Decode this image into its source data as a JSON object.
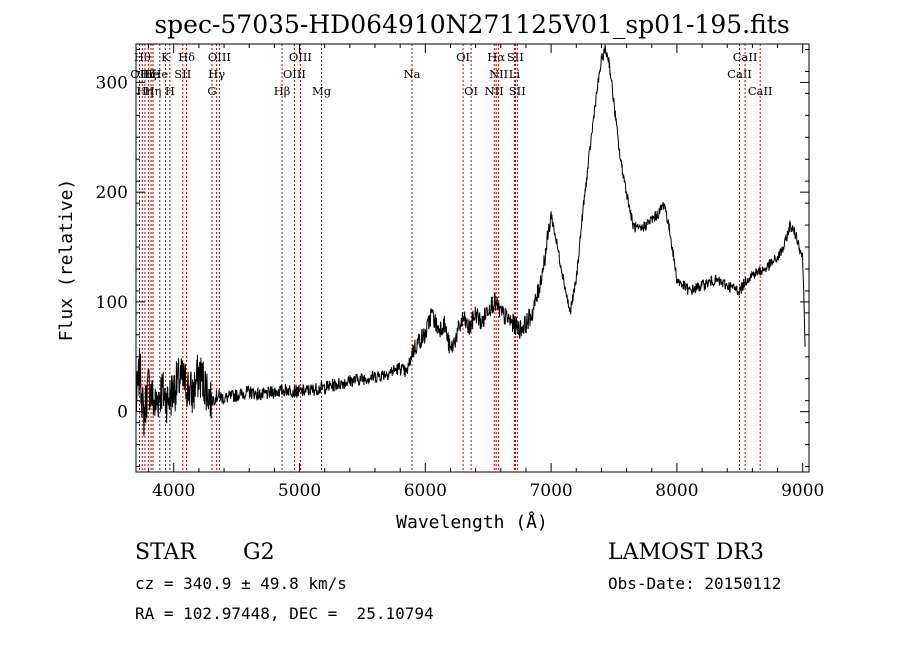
{
  "chart_data": {
    "type": "line",
    "title": "spec-57035-HD064910N271125V01_sp01-195.fits",
    "xlabel": "Wavelength (Å)",
    "ylabel": "Flux (relative)",
    "xlim": [
      3700,
      9050
    ],
    "ylim": [
      -55,
      335
    ],
    "xticks": [
      4000,
      5000,
      6000,
      7000,
      8000,
      9000
    ],
    "yticks": [
      0,
      100,
      200,
      300
    ],
    "grid": false,
    "series": [
      {
        "x": [
          3700,
          3730,
          3760,
          3800,
          3850,
          3900,
          3950,
          4000,
          4050,
          4100,
          4150,
          4200,
          4250,
          4300,
          4350,
          4400,
          4500,
          4600,
          4700,
          4800,
          4900,
          5000,
          5100,
          5200,
          5300,
          5400,
          5500,
          5600,
          5700,
          5800,
          5850,
          5900,
          5950,
          6000,
          6050,
          6100,
          6150,
          6200,
          6250,
          6300,
          6350,
          6400,
          6450,
          6500,
          6550,
          6600,
          6650,
          6700,
          6750,
          6800,
          6850,
          6900,
          6950,
          7000,
          7050,
          7100,
          7150,
          7200,
          7250,
          7300,
          7350,
          7400,
          7430,
          7460,
          7500,
          7550,
          7600,
          7650,
          7700,
          7750,
          7800,
          7850,
          7900,
          7950,
          8000,
          8050,
          8100,
          8200,
          8300,
          8400,
          8500,
          8550,
          8600,
          8700,
          8800,
          8850,
          8900,
          8950,
          9000,
          9020
        ],
        "y": [
          5,
          40,
          -5,
          25,
          5,
          20,
          10,
          20,
          30,
          25,
          15,
          35,
          25,
          10,
          15,
          12,
          15,
          18,
          15,
          18,
          20,
          18,
          20,
          22,
          25,
          28,
          30,
          32,
          35,
          40,
          35,
          55,
          65,
          70,
          90,
          75,
          80,
          55,
          70,
          85,
          75,
          90,
          80,
          95,
          100,
          90,
          85,
          80,
          75,
          80,
          90,
          110,
          140,
          180,
          150,
          120,
          90,
          120,
          180,
          230,
          280,
          320,
          330,
          320,
          280,
          230,
          200,
          170,
          165,
          170,
          175,
          180,
          190,
          160,
          120,
          115,
          110,
          115,
          120,
          115,
          110,
          120,
          125,
          130,
          140,
          150,
          170,
          160,
          140,
          60
        ]
      }
    ],
    "lines": [
      {
        "w": 3728,
        "label": "OII",
        "row": 1
      },
      {
        "w": 3750,
        "label": "Hθ",
        "row": 0
      },
      {
        "w": 3771,
        "label": "Hη",
        "row": 2
      },
      {
        "w": 3798,
        "label": "Hζ",
        "row": 1
      },
      {
        "w": 3820,
        "label": "He",
        "row": 1
      },
      {
        "w": 3835,
        "label": "Hη",
        "row": 2
      },
      {
        "w": 3889,
        "label": "He",
        "row": 1
      },
      {
        "w": 3934,
        "label": "K",
        "row": 0
      },
      {
        "w": 3969,
        "label": "H",
        "row": 2
      },
      {
        "w": 4072,
        "label": "SII",
        "row": 1
      },
      {
        "w": 4102,
        "label": "Hδ",
        "row": 0
      },
      {
        "w": 4304,
        "label": "G",
        "row": 2
      },
      {
        "w": 4341,
        "label": "Hγ",
        "row": 1
      },
      {
        "w": 4363,
        "label": "OIII",
        "row": 0
      },
      {
        "w": 4861,
        "label": "Hβ",
        "row": 2
      },
      {
        "w": 4959,
        "label": "OIII",
        "row": 1
      },
      {
        "w": 5007,
        "label": "OIII",
        "row": 0
      },
      {
        "w": 5175,
        "label": "Mg",
        "row": 2
      },
      {
        "w": 5894,
        "label": "Na",
        "row": 1
      },
      {
        "w": 6300,
        "label": "OI",
        "row": 0
      },
      {
        "w": 6364,
        "label": "OI",
        "row": 2
      },
      {
        "w": 6548,
        "label": "NII",
        "row": 2
      },
      {
        "w": 6563,
        "label": "Hα",
        "row": 0
      },
      {
        "w": 6583,
        "label": "NII",
        "row": 1
      },
      {
        "w": 6708,
        "label": "Li",
        "row": 1
      },
      {
        "w": 6716,
        "label": "SII",
        "row": 0
      },
      {
        "w": 6731,
        "label": "SII",
        "row": 2
      },
      {
        "w": 8498,
        "label": "CaII",
        "row": 1
      },
      {
        "w": 8542,
        "label": "CaII",
        "row": 0
      },
      {
        "w": 8662,
        "label": "CaII",
        "row": 2
      }
    ]
  },
  "info": {
    "object_class": "STAR",
    "subclass": "G2",
    "survey": "LAMOST DR3",
    "cz": "cz = 340.9 ± 49.8 km/s",
    "obs_date": "Obs-Date: 20150112",
    "coords": "RA = 102.97448, DEC =  25.10794"
  }
}
